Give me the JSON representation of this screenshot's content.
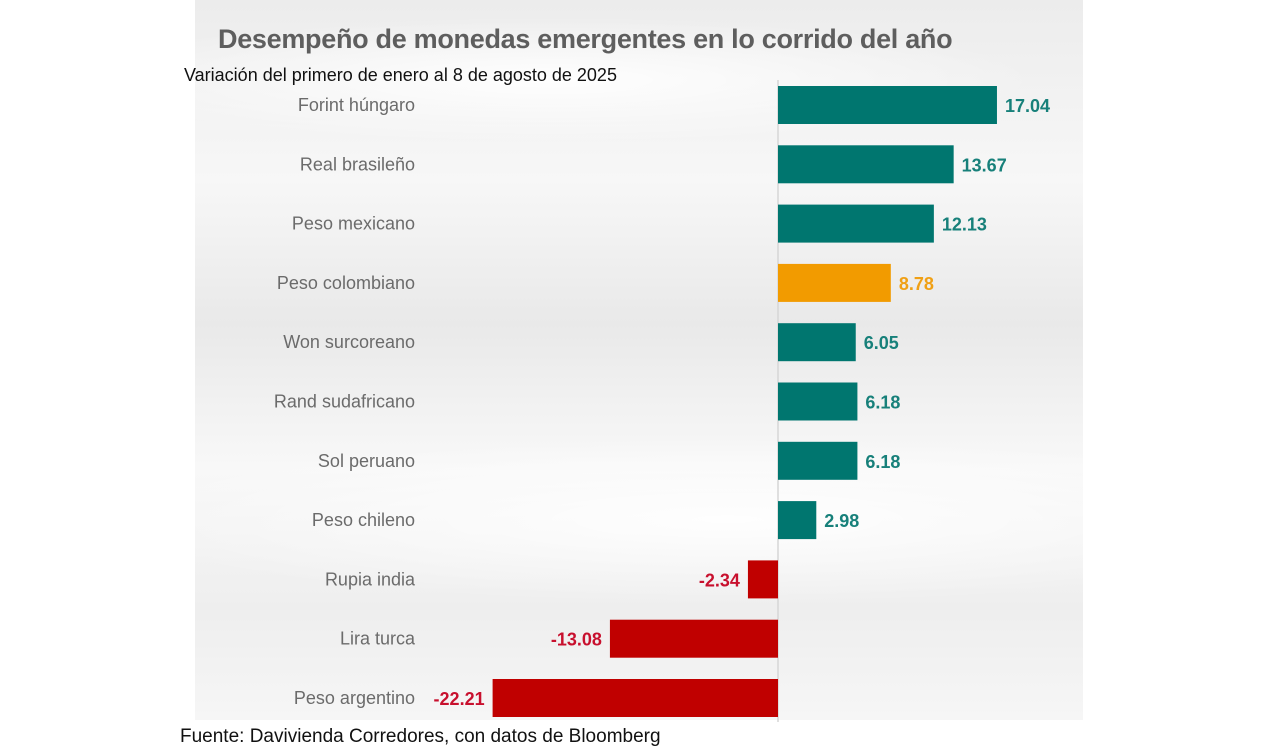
{
  "chart_data": {
    "type": "bar",
    "orientation": "horizontal",
    "title": "Desempeño de monedas emergentes en lo corrido del año",
    "subtitle": "Variación del primero de enero al 8 de agosto de 2025",
    "source": "Fuente: Davivienda Corredores, con datos de Bloomberg",
    "categories": [
      "Forint húngaro",
      "Real brasileño",
      "Peso mexicano",
      "Peso colombiano",
      "Won surcoreano",
      "Rand sudafricano",
      "Sol peruano",
      "Peso chileno",
      "Rupia india",
      "Lira turca",
      "Peso argentino"
    ],
    "values": [
      17.04,
      13.67,
      12.13,
      8.78,
      6.05,
      6.18,
      6.18,
      2.98,
      -2.34,
      -13.08,
      -22.21
    ],
    "labels": [
      "17.04",
      "13.67",
      "12.13",
      "8.78",
      "6.05",
      "6.18",
      "6.18",
      "2.98",
      "-2.34",
      "-13.08",
      "-22.21"
    ],
    "highlight": "Peso colombiano",
    "colors": {
      "positive": "#00766f",
      "highlight": "#f29b00",
      "negative": "#c00000",
      "positive_label": "#17807a",
      "highlight_label": "#f0a015",
      "negative_label": "#c8102e",
      "category_label": "#6b6b6b"
    },
    "grid": false
  }
}
